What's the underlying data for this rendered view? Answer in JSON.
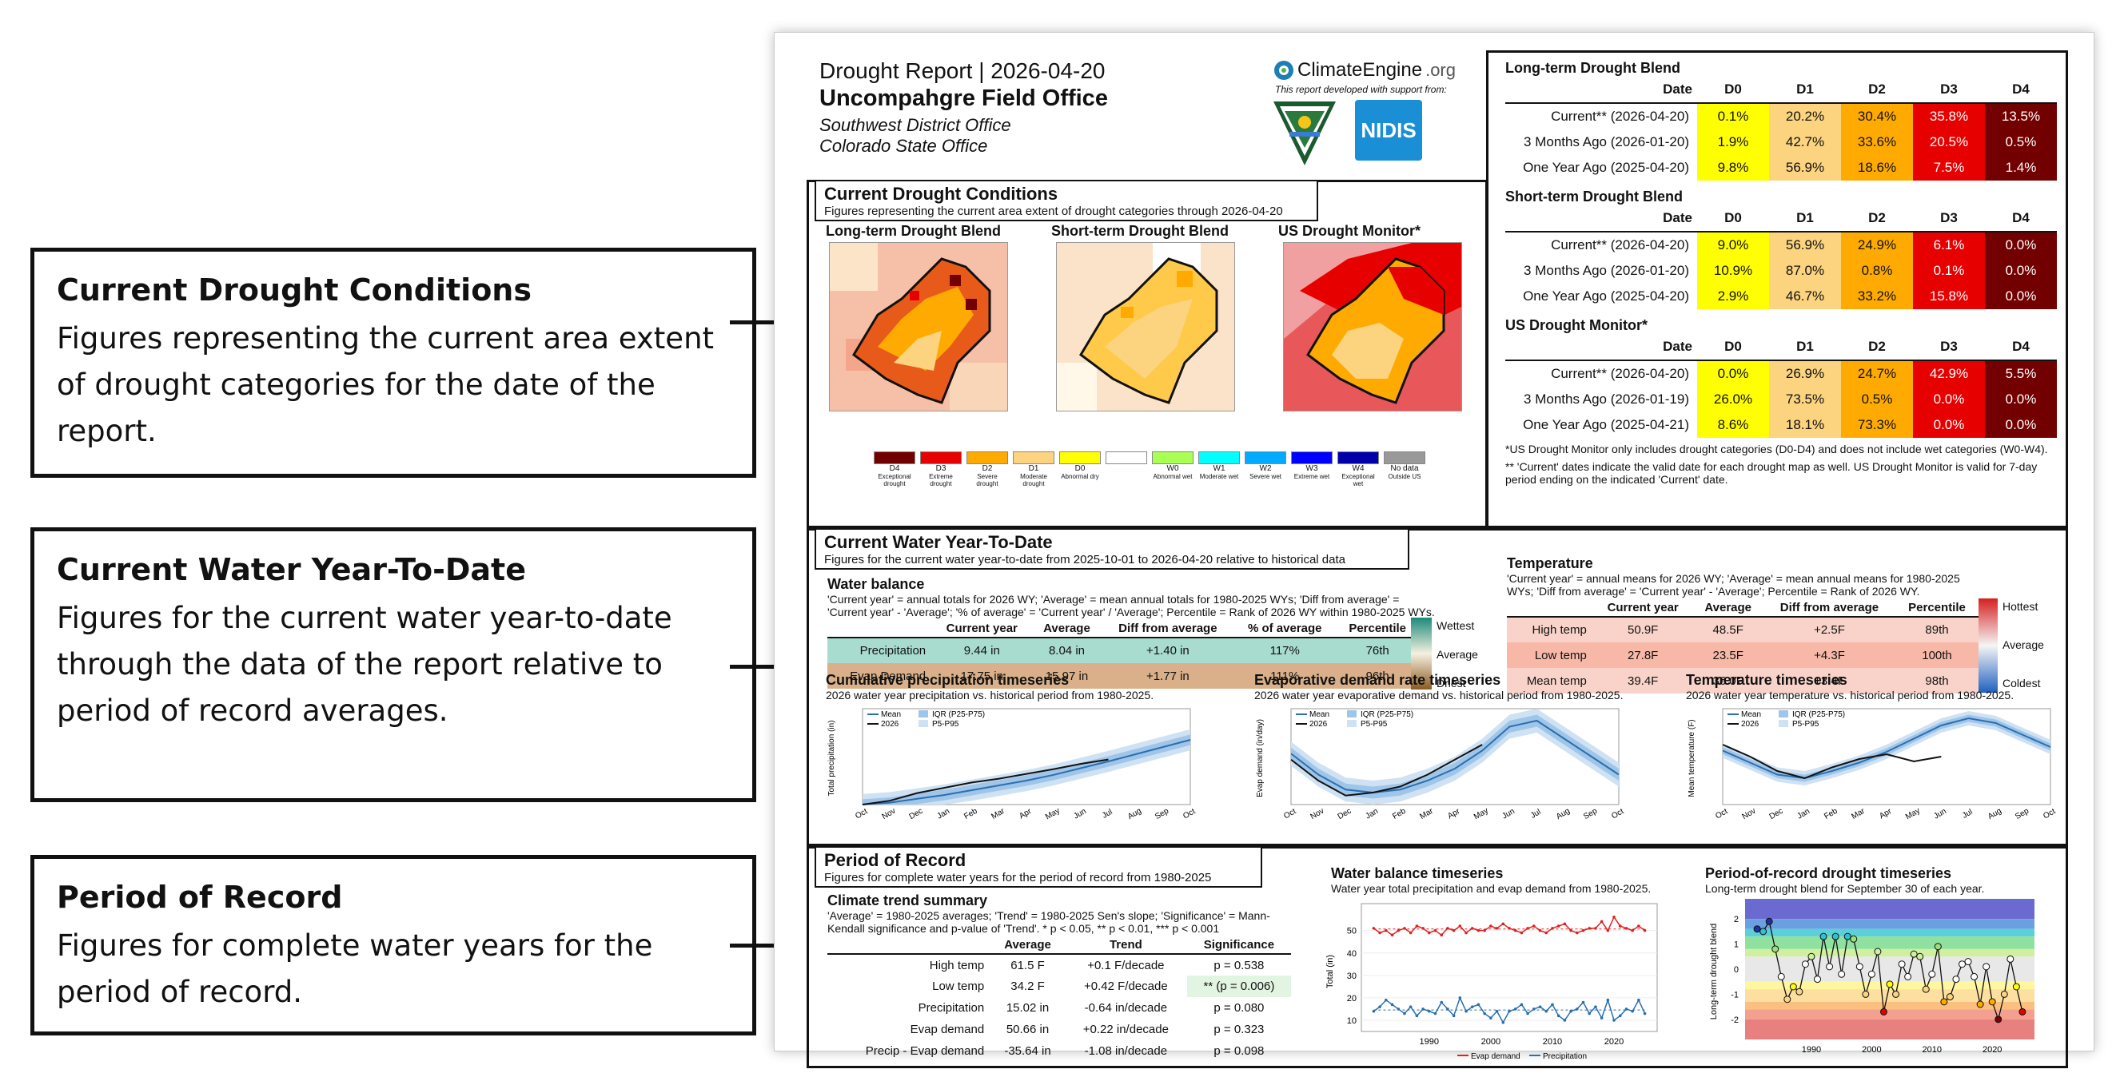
{
  "callouts": [
    {
      "title": "Current Drought Conditions",
      "desc": "Figures representing the current area extent of drought categories for the date of the report."
    },
    {
      "title": "Current Water Year-To-Date",
      "desc": "Figures for the current water year-to-date through the data of the report relative to period of record averages."
    },
    {
      "title": "Period of Record",
      "desc": "Figures for complete water years for the period of record."
    }
  ],
  "header": {
    "title": "Drought Report | 2026-04-20",
    "office": "Uncompahgre Field Office",
    "district": "Southwest District Office",
    "state": "Colorado State Office",
    "logo_text": "ClimateEngine",
    "logo_suffix": ".org",
    "support": "This report developed with support from:",
    "nidis": "NIDIS"
  },
  "drought_tables": {
    "headers": [
      "Date",
      "D0",
      "D1",
      "D2",
      "D3",
      "D4"
    ],
    "blocks": [
      {
        "title": "Long-term Drought Blend",
        "rows": [
          {
            "label": "Current** (2026-04-20)",
            "vals": [
              "0.1%",
              "20.2%",
              "30.4%",
              "35.8%",
              "13.5%"
            ]
          },
          {
            "label": "3 Months Ago (2026-01-20)",
            "vals": [
              "1.9%",
              "42.7%",
              "33.6%",
              "20.5%",
              "0.5%"
            ]
          },
          {
            "label": "One Year Ago (2025-04-20)",
            "vals": [
              "9.8%",
              "56.9%",
              "18.6%",
              "7.5%",
              "1.4%"
            ]
          }
        ]
      },
      {
        "title": "Short-term Drought Blend",
        "rows": [
          {
            "label": "Current** (2026-04-20)",
            "vals": [
              "9.0%",
              "56.9%",
              "24.9%",
              "6.1%",
              "0.0%"
            ]
          },
          {
            "label": "3 Months Ago (2026-01-20)",
            "vals": [
              "10.9%",
              "87.0%",
              "0.8%",
              "0.1%",
              "0.0%"
            ]
          },
          {
            "label": "One Year Ago (2025-04-20)",
            "vals": [
              "2.9%",
              "46.7%",
              "33.2%",
              "15.8%",
              "0.0%"
            ]
          }
        ]
      },
      {
        "title": "US Drought Monitor*",
        "rows": [
          {
            "label": "Current** (2026-04-20)",
            "vals": [
              "0.0%",
              "26.9%",
              "24.7%",
              "42.9%",
              "5.5%"
            ]
          },
          {
            "label": "3 Months Ago (2026-01-19)",
            "vals": [
              "26.0%",
              "73.5%",
              "0.5%",
              "0.0%",
              "0.0%"
            ]
          },
          {
            "label": "One Year Ago (2025-04-21)",
            "vals": [
              "8.6%",
              "18.1%",
              "73.3%",
              "0.0%",
              "0.0%"
            ]
          }
        ]
      }
    ],
    "note1": "*US Drought Monitor only includes drought categories (D0-D4) and does not include wet categories (W0-W4).",
    "note2": "** 'Current' dates indicate the valid date for each drought map as well. US Drought Monitor is valid for 7-day period ending on the indicated 'Current' date."
  },
  "current_conditions": {
    "title": "Current Drought Conditions",
    "subtitle": "Figures representing the current area extent of drought categories through 2026-04-20",
    "maps": [
      "Long-term Drought Blend",
      "Short-term Drought Blend",
      "US Drought Monitor*"
    ],
    "legend": [
      {
        "code": "D4",
        "desc": "Exceptional drought",
        "color": "#730000"
      },
      {
        "code": "D3",
        "desc": "Extreme drought",
        "color": "#e60000"
      },
      {
        "code": "D2",
        "desc": "Severe drought",
        "color": "#ffaa00"
      },
      {
        "code": "D1",
        "desc": "Moderate drought",
        "color": "#fcd37f"
      },
      {
        "code": "D0",
        "desc": "Abnormal dry",
        "color": "#ffff00"
      },
      {
        "code": "",
        "desc": "",
        "color": "#ffffff"
      },
      {
        "code": "W0",
        "desc": "Abnormal wet",
        "color": "#aaff55"
      },
      {
        "code": "W1",
        "desc": "Moderate wet",
        "color": "#01ffff"
      },
      {
        "code": "W2",
        "desc": "Severe wet",
        "color": "#00aaff"
      },
      {
        "code": "W3",
        "desc": "Extreme wet",
        "color": "#0000ff"
      },
      {
        "code": "W4",
        "desc": "Exceptional wet",
        "color": "#0000aa"
      },
      {
        "code": "No data",
        "desc": "Outside US",
        "color": "#999999"
      }
    ]
  },
  "wytd": {
    "title": "Current Water Year-To-Date",
    "subtitle": "Figures for the current water year-to-date from 2025-10-01 to 2026-04-20 relative to historical data",
    "water_balance": {
      "title": "Water balance",
      "desc": "'Current year' = annual totals for 2026 WY; 'Average' = mean annual totals for 1980-2025 WYs; 'Diff from average' = 'Current year' - 'Average'; '% of average' = 'Current year' / 'Average'; Percentile = Rank of 2026 WY within 1980-2025 WYs.",
      "headers": [
        "",
        "Current year",
        "Average",
        "Diff from average",
        "% of average",
        "Percentile"
      ],
      "rows": [
        {
          "label": "Precipitation",
          "vals": [
            "9.44 in",
            "8.04 in",
            "+1.40 in",
            "117%",
            "76th"
          ]
        },
        {
          "label": "Evap Demand",
          "vals": [
            "17.75 in",
            "15.97 in",
            "+1.77 in",
            "111%",
            "96th"
          ]
        }
      ],
      "legend": [
        "Wettest",
        "Average",
        "Driest"
      ]
    },
    "temperature": {
      "title": "Temperature",
      "desc": "'Current year' = annual means for 2026 WY; 'Average' = mean annual means for 1980-2025 WYs; 'Diff from average' = 'Current year' - 'Average'; Percentile = Rank of 2026 WY.",
      "headers": [
        "",
        "Current year",
        "Average",
        "Diff from average",
        "Percentile"
      ],
      "rows": [
        {
          "label": "High temp",
          "vals": [
            "50.9F",
            "48.5F",
            "+2.5F",
            "89th"
          ]
        },
        {
          "label": "Low temp",
          "vals": [
            "27.8F",
            "23.5F",
            "+4.3F",
            "100th"
          ]
        },
        {
          "label": "Mean temp",
          "vals": [
            "39.4F",
            "36.0F",
            "+3.4F",
            "98th"
          ]
        }
      ],
      "legend": [
        "Hottest",
        "Average",
        "Coldest"
      ]
    },
    "plots": [
      {
        "title": "Cumulative precipitation timeseries",
        "sub": "2026 water year precipitation vs. historical period from 1980-2025.",
        "ylabel": "Total precipitation (in)",
        "legend": [
          "Mean",
          "2026",
          "IQR (P25-P75)",
          "P5-P95"
        ]
      },
      {
        "title": "Evaporative demand rate timeseries",
        "sub": "2026 water year evaporative demand vs. historical period from 1980-2025.",
        "ylabel": "Evap demand (in/day)",
        "legend": [
          "Mean",
          "2026",
          "IQR (P25-P75)",
          "P5-P95"
        ]
      },
      {
        "title": "Temperature timeseries",
        "sub": "2026 water year temperature vs. historical period from 1980-2025.",
        "ylabel": "Mean temperature (F)",
        "legend": [
          "Mean",
          "2026",
          "IQR (P25-P75)",
          "P5-P95"
        ]
      }
    ],
    "months": [
      "Oct",
      "Nov",
      "Dec",
      "Jan",
      "Feb",
      "Mar",
      "Apr",
      "May",
      "Jun",
      "Jul",
      "Aug",
      "Sep",
      "Oct"
    ]
  },
  "por": {
    "title": "Period of Record",
    "subtitle": "Figures for complete water years for the period of record from 1980-2025",
    "trend": {
      "title": "Climate trend summary",
      "desc": "'Average' = 1980-2025 averages; 'Trend' = 1980-2025 Sen's slope; 'Significance' = Mann-Kendall significance and p-value of 'Trend'. * p < 0.05, ** p < 0.01, *** p < 0.001",
      "headers": [
        "",
        "Average",
        "Trend",
        "Significance"
      ],
      "rows": [
        {
          "label": "High temp",
          "vals": [
            "61.5 F",
            "+0.1 F/decade",
            "p = 0.538"
          ]
        },
        {
          "label": "Low temp",
          "vals": [
            "34.2 F",
            "+0.42 F/decade",
            "** (p = 0.006)"
          ]
        },
        {
          "label": "Precipitation",
          "vals": [
            "15.02 in",
            "-0.64 in/decade",
            "p = 0.080"
          ]
        },
        {
          "label": "Evap demand",
          "vals": [
            "50.66 in",
            "+0.22 in/decade",
            "p = 0.323"
          ]
        },
        {
          "label": "Precip - Evap demand",
          "vals": [
            "-35.64 in",
            "-1.08 in/decade",
            "p = 0.098"
          ]
        }
      ]
    },
    "wb_plot": {
      "title": "Water balance timeseries",
      "sub": "Water year total precipitation and evap demand from 1980-2025.",
      "ylabel": "Total (in)",
      "legend": [
        "Evap demand",
        "Precipitation"
      ],
      "xticks": [
        "1990",
        "2000",
        "2010",
        "2020"
      ],
      "yticks": [
        "10",
        "20",
        "30",
        "40",
        "50"
      ]
    },
    "dr_plot": {
      "title": "Period-of-record drought timeseries",
      "sub": "Long-term drought blend for September 30 of each year.",
      "ylabel": "Long-term drought blend",
      "xticks": [
        "1990",
        "2000",
        "2010",
        "2020"
      ],
      "yticks": [
        "2",
        "1",
        "0",
        "-1",
        "-2"
      ]
    }
  },
  "chart_data": [
    {
      "type": "line",
      "title": "Water balance timeseries",
      "ylabel": "Total (in)",
      "ylim": [
        5,
        62
      ],
      "x": [
        1981,
        1982,
        1983,
        1984,
        1985,
        1986,
        1987,
        1988,
        1989,
        1990,
        1991,
        1992,
        1993,
        1994,
        1995,
        1996,
        1997,
        1998,
        1999,
        2000,
        2001,
        2002,
        2003,
        2004,
        2005,
        2006,
        2007,
        2008,
        2009,
        2010,
        2011,
        2012,
        2013,
        2014,
        2015,
        2016,
        2017,
        2018,
        2019,
        2020,
        2021,
        2022,
        2023,
        2024,
        2025
      ],
      "series": [
        {
          "name": "Evap demand",
          "values": [
            51,
            49,
            50,
            48,
            50,
            51,
            49,
            52,
            51,
            49,
            50,
            48,
            51,
            50,
            52,
            49,
            51,
            50,
            50,
            52,
            51,
            53,
            51,
            50,
            49,
            51,
            52,
            50,
            49,
            51,
            52,
            53,
            50,
            49,
            50,
            51,
            51,
            54,
            50,
            56,
            52,
            51,
            50,
            52,
            50
          ]
        },
        {
          "name": "Precipitation",
          "values": [
            14,
            16,
            19,
            17,
            15,
            13,
            16,
            12,
            15,
            14,
            13,
            18,
            15,
            12,
            20,
            14,
            16,
            17,
            13,
            11,
            14,
            9,
            14,
            15,
            17,
            13,
            15,
            16,
            14,
            17,
            12,
            10,
            14,
            15,
            18,
            13,
            16,
            11,
            19,
            10,
            12,
            15,
            14,
            19,
            13
          ]
        }
      ]
    },
    {
      "type": "line",
      "title": "Period-of-record drought timeseries",
      "ylabel": "Long-term drought blend",
      "ylim": [
        -2.8,
        2.8
      ],
      "x": [
        1981,
        1982,
        1983,
        1984,
        1985,
        1986,
        1987,
        1988,
        1989,
        1990,
        1991,
        1992,
        1993,
        1994,
        1995,
        1996,
        1997,
        1998,
        1999,
        2000,
        2001,
        2002,
        2003,
        2004,
        2005,
        2006,
        2007,
        2008,
        2009,
        2010,
        2011,
        2012,
        2013,
        2014,
        2015,
        2016,
        2017,
        2018,
        2019,
        2020,
        2021,
        2022,
        2023,
        2024,
        2025
      ],
      "series": [
        {
          "name": "",
          "values": [
            1.6,
            1.5,
            1.9,
            0.8,
            -0.3,
            -1.2,
            -0.7,
            -0.9,
            0.2,
            0.5,
            -0.4,
            1.3,
            0.1,
            1.3,
            -0.2,
            1.3,
            1.2,
            0.1,
            -1.0,
            -0.2,
            0.7,
            -1.7,
            -0.6,
            -1.0,
            0.2,
            -0.3,
            0.6,
            0.5,
            -0.8,
            -0.2,
            0.9,
            -1.3,
            -1.1,
            -0.4,
            0.2,
            0.3,
            -0.3,
            -1.4,
            0.1,
            -1.3,
            -2.0,
            -1.0,
            0.4,
            -0.7,
            -1.7
          ]
        }
      ]
    }
  ]
}
